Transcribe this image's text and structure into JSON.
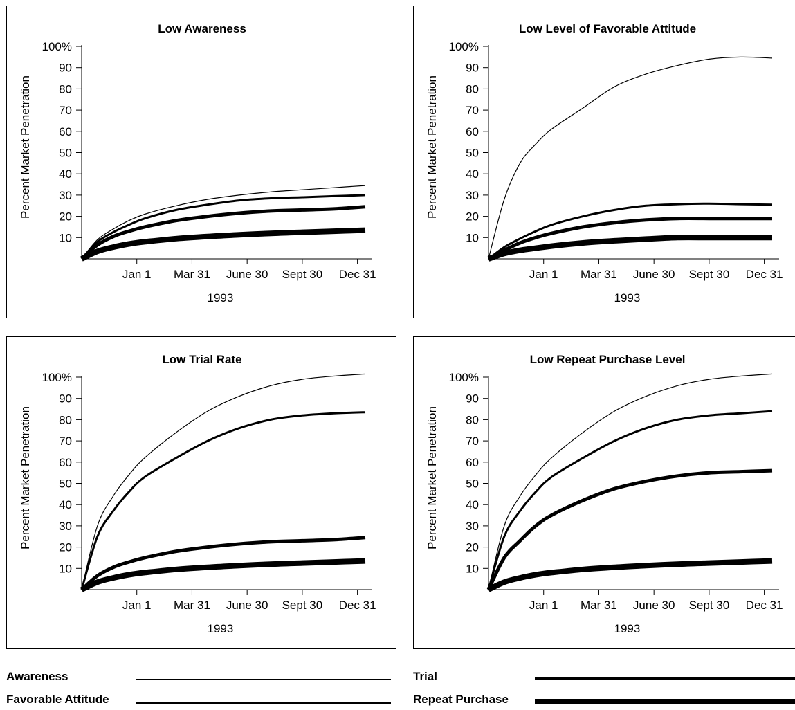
{
  "chart_data": [
    {
      "type": "line",
      "title": "Low Awareness",
      "ylabel": "Percent Market Penetration",
      "xlabel": "1993",
      "ylim": [
        0,
        100
      ],
      "yticks": [
        "100%",
        "90",
        "80",
        "70",
        "60",
        "50",
        "40",
        "30",
        "20",
        "10"
      ],
      "xticks": [
        "Jan 1",
        "Mar 31",
        "June 30",
        "Sept 30",
        "Dec 31"
      ],
      "x": [
        0,
        0.25,
        0.5,
        0.75,
        1,
        1.5,
        2,
        2.5,
        3,
        3.5,
        4,
        4.5
      ],
      "series": [
        {
          "name": "Awareness",
          "values": [
            0,
            9,
            14,
            18,
            21,
            25,
            28,
            30,
            31.5,
            32.5,
            33.5,
            34.5
          ]
        },
        {
          "name": "Favorable Attitude",
          "values": [
            0,
            8,
            12.5,
            16,
            19,
            23,
            25.5,
            27.5,
            28.5,
            29,
            29.5,
            30
          ]
        },
        {
          "name": "Trial",
          "values": [
            0,
            6.5,
            10.5,
            13,
            15,
            18,
            20,
            21.5,
            22.5,
            23,
            23.5,
            24.5
          ]
        },
        {
          "name": "Repeat Purchase",
          "values": [
            0,
            3.5,
            5.5,
            7,
            8,
            9.5,
            10.5,
            11.3,
            12,
            12.5,
            13,
            13.5
          ]
        }
      ]
    },
    {
      "type": "line",
      "title": "Low Level of Favorable Attitude",
      "ylabel": "Percent Market Penetration",
      "xlabel": "1993",
      "ylim": [
        0,
        100
      ],
      "yticks": [
        "100%",
        "90",
        "80",
        "70",
        "60",
        "50",
        "40",
        "30",
        "20",
        "10"
      ],
      "xticks": [
        "Jan 1",
        "Mar 31",
        "June 30",
        "Sept 30",
        "Dec 31"
      ],
      "x": [
        0,
        0.25,
        0.5,
        0.75,
        1,
        1.5,
        2,
        2.5,
        3,
        3.5,
        4,
        4.5
      ],
      "series": [
        {
          "name": "Awareness",
          "values": [
            0,
            28,
            45,
            54,
            61,
            71,
            81,
            87,
            91,
            94,
            95,
            94.5
          ]
        },
        {
          "name": "Favorable Attitude",
          "values": [
            0,
            5.5,
            9.5,
            13,
            16,
            20,
            23,
            25,
            25.7,
            26,
            25.7,
            25.5
          ]
        },
        {
          "name": "Trial",
          "values": [
            0,
            4,
            7.5,
            10,
            12,
            15,
            17,
            18.3,
            19,
            19,
            19,
            19
          ]
        },
        {
          "name": "Repeat Purchase",
          "values": [
            0,
            2.5,
            4,
            5,
            6,
            7.5,
            8.5,
            9.3,
            10,
            10,
            10,
            10
          ]
        }
      ]
    },
    {
      "type": "line",
      "title": "Low Trial Rate",
      "ylabel": "Percent Market Penetration",
      "xlabel": "1993",
      "ylim": [
        0,
        100
      ],
      "yticks": [
        "100%",
        "90",
        "80",
        "70",
        "60",
        "50",
        "40",
        "30",
        "20",
        "10"
      ],
      "xticks": [
        "Jan 1",
        "Mar 31",
        "June 30",
        "Sept 30",
        "Dec 31"
      ],
      "x": [
        0,
        0.25,
        0.5,
        0.75,
        1,
        1.5,
        2,
        2.5,
        3,
        3.5,
        4,
        4.5
      ],
      "series": [
        {
          "name": "Awareness",
          "values": [
            0,
            30,
            44,
            54,
            62,
            74,
            84,
            91,
            96,
            99,
            100.5,
            101.5
          ]
        },
        {
          "name": "Favorable Attitude",
          "values": [
            0,
            25,
            37,
            46,
            53,
            62,
            70,
            76,
            80,
            82,
            83,
            83.5
          ]
        },
        {
          "name": "Trial",
          "values": [
            0,
            6.5,
            10.5,
            13,
            15,
            18,
            20,
            21.5,
            22.5,
            23,
            23.5,
            24.5
          ]
        },
        {
          "name": "Repeat Purchase",
          "values": [
            0,
            3.5,
            5.5,
            7,
            8,
            9.5,
            10.5,
            11.3,
            12,
            12.5,
            13,
            13.5
          ]
        }
      ]
    },
    {
      "type": "line",
      "title": "Low Repeat Purchase Level",
      "ylabel": "Percent Market Penetration",
      "xlabel": "1993",
      "ylim": [
        0,
        100
      ],
      "yticks": [
        "100%",
        "90",
        "80",
        "70",
        "60",
        "50",
        "40",
        "30",
        "20",
        "10"
      ],
      "xticks": [
        "Jan 1",
        "Mar 31",
        "June 30",
        "Sept 30",
        "Dec 31"
      ],
      "x": [
        0,
        0.25,
        0.5,
        0.75,
        1,
        1.5,
        2,
        2.5,
        3,
        3.5,
        4,
        4.5
      ],
      "series": [
        {
          "name": "Awareness",
          "values": [
            0,
            30,
            44,
            54,
            62,
            74,
            84,
            91,
            96,
            99,
            100.5,
            101.5
          ]
        },
        {
          "name": "Favorable Attitude",
          "values": [
            0,
            25,
            37,
            46,
            53,
            62,
            70,
            76,
            80,
            82,
            83,
            84
          ]
        },
        {
          "name": "Trial",
          "values": [
            0,
            15,
            23,
            30,
            35,
            42,
            47.5,
            51,
            53.5,
            55,
            55.5,
            56
          ]
        },
        {
          "name": "Repeat Purchase",
          "values": [
            0,
            3.5,
            5.5,
            7,
            8,
            9.5,
            10.5,
            11.3,
            12,
            12.5,
            13,
            13.5
          ]
        }
      ]
    }
  ],
  "legend": {
    "items": [
      {
        "label": "Awareness",
        "weight": 1
      },
      {
        "label": "Favorable Attitude",
        "weight": 3
      },
      {
        "label": "Trial",
        "weight": 5
      },
      {
        "label": "Repeat Purchase",
        "weight": 8
      }
    ]
  }
}
